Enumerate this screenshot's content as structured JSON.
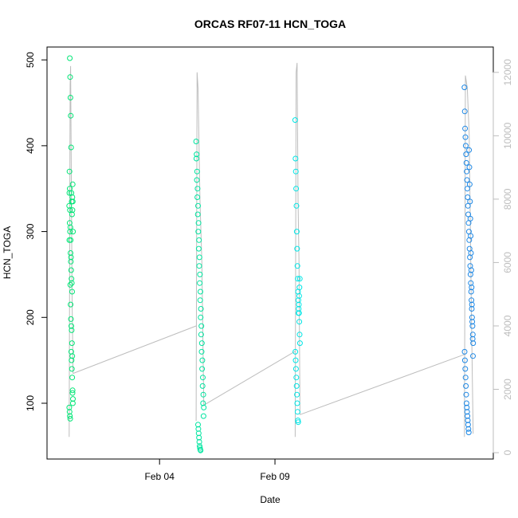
{
  "chart_data": {
    "type": "scatter",
    "title": "ORCAS RF07-11 HCN_TOGA",
    "xlabel": "Date",
    "ylabel": "HCN_TOGA",
    "xlim": [
      "2016-01-30T03:00",
      "2016-02-18T11:00"
    ],
    "ylim": [
      35,
      515
    ],
    "y2lim": [
      -200,
      12800
    ],
    "x_ticks": [
      {
        "label": "Feb 04",
        "value": "2016-02-04"
      },
      {
        "label": "Feb 09",
        "value": "2016-02-09"
      }
    ],
    "y_ticks": [
      100,
      200,
      300,
      400,
      500
    ],
    "y2_ticks": [
      0,
      2000,
      4000,
      6000,
      8000,
      10000,
      12000
    ],
    "grid": false,
    "altitude_line": {
      "color": "#bdbdbd",
      "segments": [
        {
          "x": [
            "2016-01-31T02:00",
            "2016-01-31T03:00",
            "2016-01-31T03:30",
            "2016-01-31T05:00",
            "2016-01-31T06:00"
          ],
          "y": [
            500,
            11600,
            12200,
            5000,
            2500
          ]
        },
        {
          "x": [
            "2016-01-31T06:00",
            "2016-02-05T14:00"
          ],
          "y": [
            2500,
            4000
          ]
        },
        {
          "x": [
            "2016-02-05T14:00",
            "2016-02-05T15:00",
            "2016-02-05T16:00",
            "2016-02-05T18:00",
            "2016-02-05T20:00",
            "2016-02-05T22:00"
          ],
          "y": [
            1000,
            12000,
            11500,
            8000,
            6000,
            1500
          ]
        },
        {
          "x": [
            "2016-02-05T22:00",
            "2016-02-09T21:00"
          ],
          "y": [
            1500,
            3200
          ]
        },
        {
          "x": [
            "2016-02-09T21:00",
            "2016-02-09T22:00",
            "2016-02-09T23:00",
            "2016-02-10T00:00",
            "2016-02-10T01:00",
            "2016-02-10T02:00"
          ],
          "y": [
            500,
            12000,
            12300,
            8000,
            6000,
            1200
          ]
        },
        {
          "x": [
            "2016-02-10T02:00",
            "2016-02-17T05:00"
          ],
          "y": [
            1200,
            3100
          ]
        },
        {
          "x": [
            "2016-02-17T05:00",
            "2016-02-17T06:00",
            "2016-02-17T08:00",
            "2016-02-17T10:00",
            "2016-02-17T12:00",
            "2016-02-17T14:00"
          ],
          "y": [
            500,
            11900,
            11500,
            10000,
            5000,
            600
          ]
        }
      ]
    },
    "series": [
      {
        "color": "#00e676",
        "x": [
          "2016-01-31T02:00",
          "2016-01-31T02:20",
          "2016-01-31T02:40",
          "2016-01-31T03:00",
          "2016-01-31T03:20",
          "2016-01-31T03:40",
          "2016-01-31T04:00",
          "2016-01-31T04:20",
          "2016-01-31T04:40",
          "2016-01-31T05:00",
          "2016-01-31T05:20",
          "2016-01-31T05:40",
          "2016-01-31T06:00",
          "2016-01-31T02:10",
          "2016-01-31T02:30",
          "2016-01-31T02:50",
          "2016-01-31T03:10",
          "2016-01-31T03:30",
          "2016-01-31T03:50",
          "2016-01-31T04:10",
          "2016-01-31T04:30",
          "2016-01-31T04:50",
          "2016-01-31T05:10",
          "2016-01-31T05:30",
          "2016-01-31T05:50",
          "2016-01-31T02:05",
          "2016-01-31T02:25",
          "2016-01-31T02:45",
          "2016-01-31T03:05",
          "2016-01-31T03:25",
          "2016-01-31T03:45",
          "2016-01-31T04:05",
          "2016-01-31T04:25",
          "2016-01-31T04:45",
          "2016-01-31T05:05",
          "2016-01-31T05:25",
          "2016-01-31T05:45",
          "2016-01-31T02:15",
          "2016-01-31T02:35",
          "2016-01-31T02:55",
          "2016-01-31T03:15",
          "2016-01-31T03:35",
          "2016-01-31T03:55",
          "2016-01-31T04:15",
          "2016-01-31T04:35",
          "2016-01-31T04:55",
          "2016-01-31T05:15",
          "2016-01-31T05:35",
          "2016-01-31T05:55"
        ],
        "y": [
          330,
          370,
          502,
          480,
          456,
          435,
          398,
          345,
          335,
          320,
          340,
          355,
          300,
          290,
          310,
          325,
          238,
          215,
          198,
          160,
          150,
          140,
          130,
          112,
          100,
          95,
          90,
          85,
          82,
          275,
          265,
          255,
          245,
          240,
          230,
          325,
          335,
          345,
          350,
          300,
          305,
          290,
          270,
          190,
          185,
          170,
          155,
          115,
          105
        ]
      },
      {
        "color": "#00e5a0",
        "x": [
          "2016-02-05T14:00",
          "2016-02-05T14:30",
          "2016-02-05T15:00",
          "2016-02-05T15:30",
          "2016-02-05T16:00",
          "2016-02-05T16:30",
          "2016-02-05T17:00",
          "2016-02-05T17:30",
          "2016-02-05T18:00",
          "2016-02-05T18:30",
          "2016-02-05T19:00",
          "2016-02-05T19:30",
          "2016-02-05T20:00",
          "2016-02-05T20:30",
          "2016-02-05T21:00",
          "2016-02-05T21:30",
          "2016-02-05T22:00",
          "2016-02-05T14:15",
          "2016-02-05T14:45",
          "2016-02-05T15:15",
          "2016-02-05T15:45",
          "2016-02-05T16:15",
          "2016-02-05T16:45",
          "2016-02-05T17:15",
          "2016-02-05T17:45",
          "2016-02-05T18:15",
          "2016-02-05T18:45",
          "2016-02-05T19:15",
          "2016-02-05T19:45",
          "2016-02-05T20:15",
          "2016-02-05T20:45",
          "2016-02-05T21:15",
          "2016-02-05T21:45",
          "2016-02-05T16:00",
          "2016-02-05T16:20",
          "2016-02-05T16:40",
          "2016-02-05T17:00",
          "2016-02-05T17:20",
          "2016-02-05T17:40",
          "2016-02-05T18:00",
          "2016-02-05T18:20",
          "2016-02-05T18:40"
        ],
        "y": [
          405,
          390,
          370,
          350,
          330,
          310,
          290,
          270,
          250,
          230,
          210,
          190,
          170,
          150,
          130,
          110,
          95,
          385,
          360,
          340,
          320,
          300,
          280,
          260,
          240,
          220,
          200,
          180,
          160,
          140,
          120,
          100,
          85,
          75,
          70,
          65,
          60,
          55,
          50,
          48,
          46,
          45
        ]
      },
      {
        "color": "#00e5e5",
        "x": [
          "2016-02-09T21:00",
          "2016-02-09T21:20",
          "2016-02-09T21:40",
          "2016-02-09T22:00",
          "2016-02-09T22:20",
          "2016-02-09T22:40",
          "2016-02-09T23:00",
          "2016-02-09T23:20",
          "2016-02-09T23:40",
          "2016-02-10T00:00",
          "2016-02-10T00:20",
          "2016-02-10T00:40",
          "2016-02-10T01:00",
          "2016-02-10T01:20",
          "2016-02-10T01:40",
          "2016-02-10T02:00",
          "2016-02-09T21:10",
          "2016-02-09T21:30",
          "2016-02-09T21:50",
          "2016-02-09T22:10",
          "2016-02-09T22:30",
          "2016-02-09T22:50",
          "2016-02-09T23:10",
          "2016-02-09T23:30",
          "2016-02-09T23:50",
          "2016-02-10T00:10",
          "2016-02-10T00:30",
          "2016-02-10T00:50",
          "2016-02-10T01:10",
          "2016-02-10T01:30",
          "2016-02-10T01:50"
        ],
        "y": [
          430,
          385,
          370,
          350,
          330,
          300,
          280,
          260,
          245,
          230,
          220,
          210,
          205,
          195,
          180,
          170,
          160,
          150,
          140,
          130,
          120,
          110,
          100,
          90,
          80,
          78,
          205,
          215,
          225,
          235,
          245
        ]
      },
      {
        "color": "#1e88e5",
        "x": [
          "2016-02-17T05:00",
          "2016-02-17T05:20",
          "2016-02-17T05:40",
          "2016-02-17T06:00",
          "2016-02-17T06:20",
          "2016-02-17T06:40",
          "2016-02-17T07:00",
          "2016-02-17T07:20",
          "2016-02-17T07:40",
          "2016-02-17T08:00",
          "2016-02-17T08:20",
          "2016-02-17T08:40",
          "2016-02-17T09:00",
          "2016-02-17T09:20",
          "2016-02-17T09:40",
          "2016-02-17T10:00",
          "2016-02-17T10:20",
          "2016-02-17T10:40",
          "2016-02-17T11:00",
          "2016-02-17T11:20",
          "2016-02-17T11:40",
          "2016-02-17T12:00",
          "2016-02-17T12:20",
          "2016-02-17T12:40",
          "2016-02-17T13:00",
          "2016-02-17T13:20",
          "2016-02-17T13:40",
          "2016-02-17T14:00",
          "2016-02-17T05:10",
          "2016-02-17T05:30",
          "2016-02-17T05:50",
          "2016-02-17T06:10",
          "2016-02-17T06:30",
          "2016-02-17T06:50",
          "2016-02-17T07:10",
          "2016-02-17T07:30",
          "2016-02-17T07:50",
          "2016-02-17T08:10",
          "2016-02-17T08:30",
          "2016-02-17T08:50",
          "2016-02-17T09:10",
          "2016-02-17T09:30",
          "2016-02-17T09:50",
          "2016-02-17T10:10",
          "2016-02-17T10:30",
          "2016-02-17T10:50",
          "2016-02-17T11:10",
          "2016-02-17T11:30",
          "2016-02-17T11:50",
          "2016-02-17T12:10",
          "2016-02-17T12:30",
          "2016-02-17T12:50",
          "2016-02-17T13:10",
          "2016-02-17T13:30",
          "2016-02-17T13:50"
        ],
        "y": [
          468,
          440,
          420,
          410,
          400,
          390,
          380,
          370,
          360,
          350,
          340,
          330,
          320,
          310,
          300,
          290,
          280,
          270,
          260,
          250,
          240,
          230,
          220,
          210,
          200,
          190,
          180,
          170,
          160,
          150,
          140,
          130,
          120,
          110,
          100,
          95,
          90,
          85,
          80,
          75,
          70,
          66,
          395,
          375,
          355,
          335,
          315,
          295,
          275,
          255,
          235,
          215,
          195,
          175,
          155
        ]
      }
    ]
  }
}
